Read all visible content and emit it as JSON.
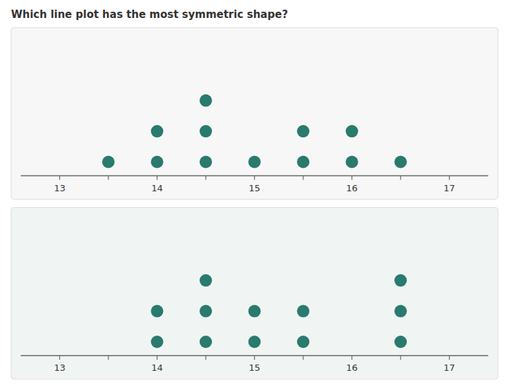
{
  "chart_data": [
    {
      "type": "dot",
      "title": "Which line plot has the most symmetric shape?",
      "x": [
        13.5,
        14.0,
        14.5,
        15.0,
        15.5,
        16.0,
        16.5
      ],
      "values": [
        1,
        2,
        3,
        1,
        2,
        2,
        1
      ],
      "color": "#2a7a6e",
      "xlim": [
        12.6,
        17.4
      ],
      "xticks": [
        13,
        {
          "value": 13.5,
          "label": null
        },
        14,
        {
          "value": 14.5,
          "label": null
        },
        15,
        {
          "value": 15.5,
          "label": null
        },
        16,
        {
          "value": 16.5,
          "label": null
        },
        17
      ],
      "tick_labels": "x",
      "grid": false
    },
    {
      "type": "dot",
      "x": [
        14.0,
        14.5,
        15.0,
        15.5,
        16.5
      ],
      "values": [
        2,
        3,
        2,
        2,
        3
      ],
      "color": "#2a7a6e",
      "xlim": [
        12.6,
        17.4
      ],
      "xticks": [
        13,
        {
          "value": 13.5,
          "label": null
        },
        14,
        {
          "value": 14.5,
          "label": null
        },
        15,
        {
          "value": 15.5,
          "label": null
        },
        16,
        {
          "value": 16.5,
          "label": null
        },
        17
      ],
      "tick_labels": "x",
      "grid": false
    }
  ]
}
